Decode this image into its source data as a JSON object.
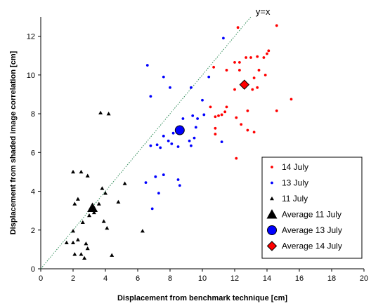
{
  "chart_data": {
    "type": "scatter",
    "xlabel": "Displacement from benchmark technique [cm]",
    "ylabel": "Displacement from shaded image correlation  [cm]",
    "xlim": [
      0,
      20
    ],
    "ylim": [
      0,
      13
    ],
    "xticks": [
      0,
      2,
      4,
      6,
      8,
      10,
      12,
      14,
      16,
      18,
      20
    ],
    "yticks": [
      0,
      2,
      4,
      6,
      8,
      10,
      12
    ],
    "grid": false,
    "legend_position": "bottom-right",
    "reference_line": {
      "label": "y=x",
      "slope": 1,
      "intercept": 0,
      "style": "dotted",
      "color": "#2E8B57"
    },
    "series": [
      {
        "name": "14 July",
        "marker": "circle-small",
        "color": "#ff0000",
        "points": [
          [
            12.2,
            12.45
          ],
          [
            14.6,
            12.55
          ],
          [
            14.1,
            11.25
          ],
          [
            14.0,
            11.1
          ],
          [
            12.7,
            10.9
          ],
          [
            13.0,
            10.9
          ],
          [
            13.4,
            10.95
          ],
          [
            13.8,
            10.9
          ],
          [
            12.0,
            10.65
          ],
          [
            12.3,
            10.65
          ],
          [
            11.5,
            10.25
          ],
          [
            12.3,
            10.25
          ],
          [
            13.5,
            10.25
          ],
          [
            10.7,
            10.4
          ],
          [
            13.9,
            10.0
          ],
          [
            13.2,
            9.85
          ],
          [
            13.4,
            9.35
          ],
          [
            13.1,
            9.25
          ],
          [
            12.0,
            9.25
          ],
          [
            10.5,
            8.35
          ],
          [
            11.5,
            8.35
          ],
          [
            15.5,
            8.75
          ],
          [
            11.4,
            8.1
          ],
          [
            12.8,
            8.15
          ],
          [
            14.6,
            8.15
          ],
          [
            11.2,
            7.95
          ],
          [
            11.0,
            7.9
          ],
          [
            10.8,
            7.85
          ],
          [
            12.1,
            7.8
          ],
          [
            12.4,
            7.45
          ],
          [
            10.8,
            7.25
          ],
          [
            12.8,
            7.15
          ],
          [
            13.2,
            7.05
          ],
          [
            10.8,
            6.95
          ],
          [
            12.1,
            5.7
          ]
        ]
      },
      {
        "name": "13 July",
        "marker": "circle-small",
        "color": "#0000ff",
        "points": [
          [
            11.3,
            11.9
          ],
          [
            6.6,
            10.5
          ],
          [
            10.4,
            9.9
          ],
          [
            7.6,
            9.9
          ],
          [
            8.0,
            9.35
          ],
          [
            9.3,
            9.35
          ],
          [
            6.8,
            8.9
          ],
          [
            10.0,
            8.7
          ],
          [
            10.1,
            7.95
          ],
          [
            9.4,
            7.9
          ],
          [
            9.7,
            7.75
          ],
          [
            8.8,
            7.75
          ],
          [
            9.6,
            7.3
          ],
          [
            8.6,
            7.25
          ],
          [
            8.2,
            7.0
          ],
          [
            7.6,
            6.85
          ],
          [
            9.5,
            6.75
          ],
          [
            7.9,
            6.6
          ],
          [
            9.2,
            6.6
          ],
          [
            11.2,
            6.55
          ],
          [
            8.1,
            6.45
          ],
          [
            7.2,
            6.4
          ],
          [
            6.8,
            6.35
          ],
          [
            8.5,
            6.3
          ],
          [
            7.4,
            6.25
          ],
          [
            9.3,
            6.35
          ],
          [
            7.6,
            4.85
          ],
          [
            7.1,
            4.75
          ],
          [
            6.5,
            4.45
          ],
          [
            8.5,
            4.6
          ],
          [
            8.6,
            4.3
          ],
          [
            7.3,
            3.9
          ],
          [
            6.9,
            3.1
          ]
        ]
      },
      {
        "name": "11 July",
        "marker": "triangle-small",
        "color": "#000000",
        "points": [
          [
            3.7,
            8.05
          ],
          [
            4.2,
            8.0
          ],
          [
            2.0,
            5.0
          ],
          [
            2.5,
            5.0
          ],
          [
            2.9,
            4.8
          ],
          [
            5.2,
            4.4
          ],
          [
            3.8,
            4.15
          ],
          [
            4.0,
            3.9
          ],
          [
            2.3,
            3.6
          ],
          [
            2.1,
            3.35
          ],
          [
            3.6,
            3.35
          ],
          [
            4.8,
            3.45
          ],
          [
            3.3,
            2.9
          ],
          [
            3.0,
            2.75
          ],
          [
            3.9,
            2.45
          ],
          [
            2.6,
            2.4
          ],
          [
            4.1,
            2.1
          ],
          [
            6.3,
            1.95
          ],
          [
            2.0,
            1.95
          ],
          [
            2.3,
            1.5
          ],
          [
            1.6,
            1.35
          ],
          [
            2.0,
            1.35
          ],
          [
            2.8,
            1.3
          ],
          [
            2.9,
            1.05
          ],
          [
            2.1,
            0.75
          ],
          [
            2.5,
            0.75
          ],
          [
            4.4,
            0.7
          ],
          [
            2.7,
            0.55
          ]
        ]
      },
      {
        "name": "Average 11 July",
        "marker": "triangle-large",
        "color": "#000000",
        "points": [
          [
            3.2,
            3.15
          ]
        ]
      },
      {
        "name": "Average 13 July",
        "marker": "circle-large",
        "color": "#0000ff",
        "points": [
          [
            8.6,
            7.15
          ]
        ]
      },
      {
        "name": "Average 14 July",
        "marker": "diamond-large",
        "color": "#ff0000",
        "points": [
          [
            12.6,
            9.5
          ]
        ]
      }
    ]
  }
}
